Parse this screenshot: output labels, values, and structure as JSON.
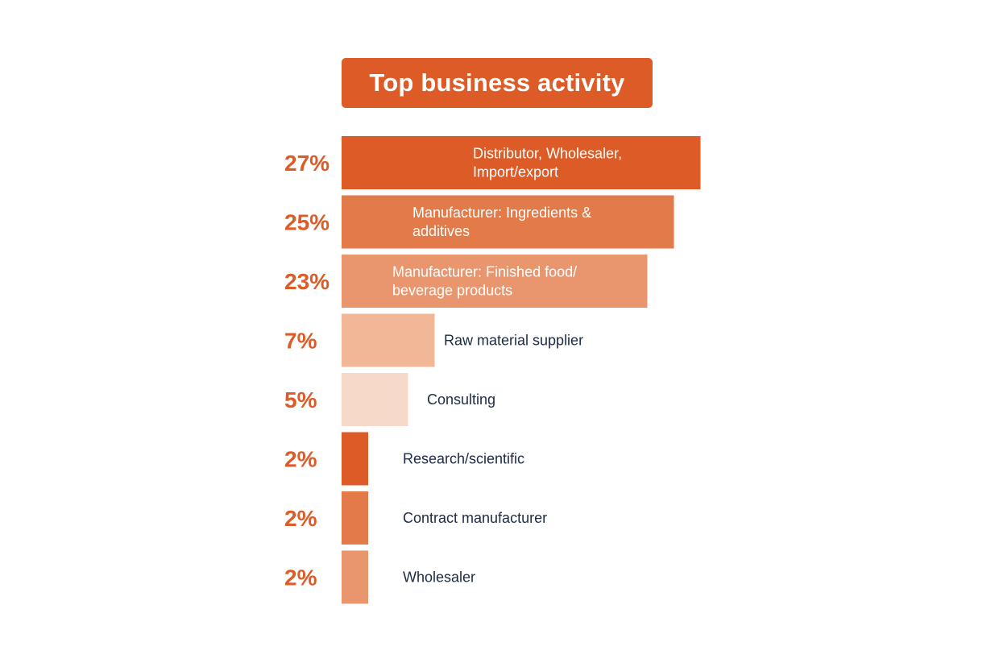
{
  "title": "Top business activity",
  "chart_data": {
    "type": "bar",
    "orientation": "horizontal",
    "title": "Top business activity",
    "categories": [
      [
        "Distributor, Wholesaler,",
        "Import/export"
      ],
      [
        "Manufacturer: Ingredients &",
        "additives"
      ],
      [
        "Manufacturer: Finished food/",
        "beverage products"
      ],
      [
        "Raw material supplier"
      ],
      [
        "Consulting"
      ],
      [
        "Research/scientific"
      ],
      [
        "Contract manufacturer"
      ],
      [
        "Wholesaler"
      ]
    ],
    "values": [
      27,
      25,
      23,
      7,
      5,
      2,
      2,
      2
    ],
    "value_labels": [
      "27%",
      "25%",
      "23%",
      "7%",
      "5%",
      "2%",
      "2%",
      "2%"
    ],
    "unit": "%",
    "bar_colors": [
      "#dd5b26",
      "#e37a49",
      "#e9966e",
      "#f1b797",
      "#f7d9c9",
      "#dd5b26",
      "#e37a49",
      "#e9966e"
    ],
    "label_colors": [
      "#ffffff",
      "#ffffff",
      "#ffffff",
      "#1b2a45",
      "#1b2a45",
      "#1b2a45",
      "#1b2a45",
      "#1b2a45"
    ],
    "grid": false,
    "legend": "none"
  }
}
